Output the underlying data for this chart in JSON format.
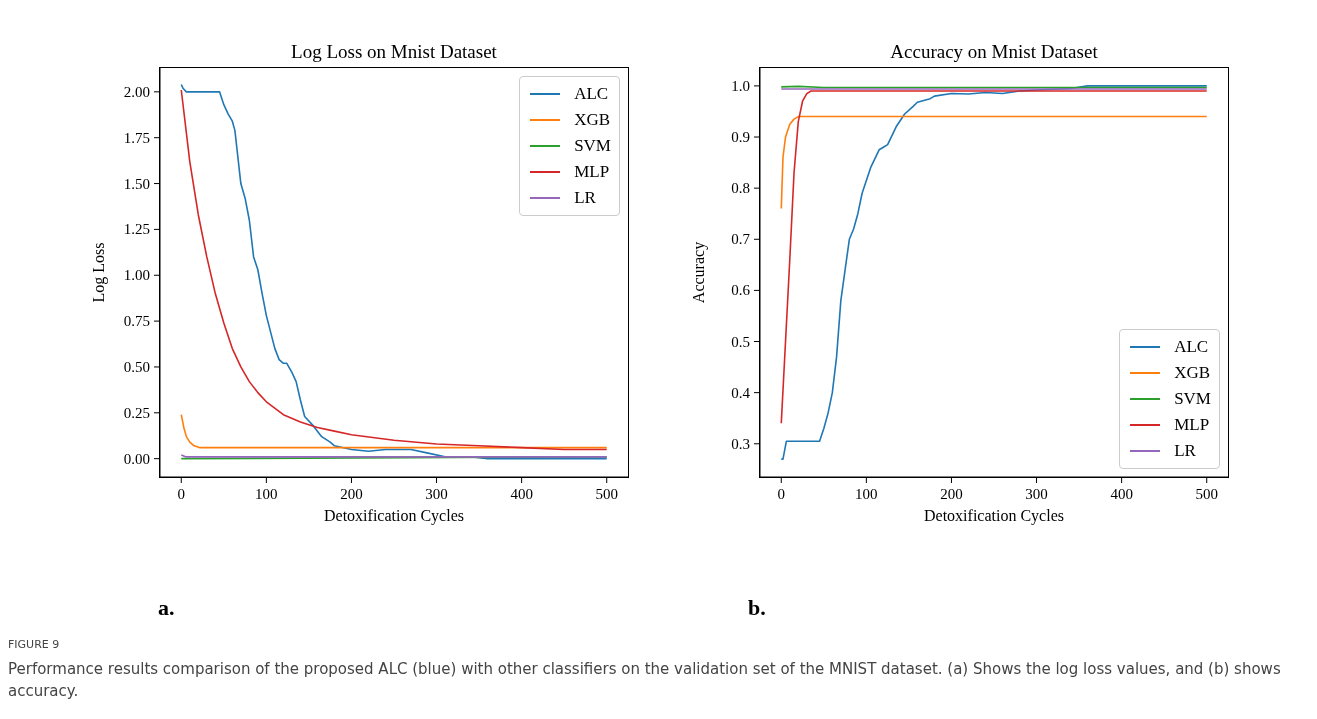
{
  "chart_data": [
    {
      "type": "line",
      "title": "Log Loss on Mnist Dataset",
      "xlabel": "Detoxification Cycles",
      "ylabel": "Log Loss",
      "xlim": [
        -25,
        525
      ],
      "xticks": [
        0,
        100,
        200,
        300,
        400,
        500
      ],
      "ylim": [
        -0.1,
        2.13
      ],
      "yticks": [
        {
          "value": 0,
          "label": "0.00"
        },
        {
          "value": 0.25,
          "label": "0.25"
        },
        {
          "value": 0.5,
          "label": "0.50"
        },
        {
          "value": 0.75,
          "label": "0.75"
        },
        {
          "value": 1,
          "label": "1.00"
        },
        {
          "value": 1.25,
          "label": "1.25"
        },
        {
          "value": 1.5,
          "label": "1.50"
        },
        {
          "value": 1.75,
          "label": "1.75"
        },
        {
          "value": 2,
          "label": "2.00"
        }
      ],
      "legend": "top right",
      "line_style": "solid",
      "annotations": [
        "a."
      ],
      "series": [
        {
          "name": "ALC",
          "color": "#1f77b4",
          "x": [
            0,
            2,
            6,
            45,
            50,
            55,
            60,
            63,
            70,
            75,
            80,
            85,
            90,
            95,
            100,
            110,
            115,
            120,
            124,
            130,
            135,
            140,
            145,
            155,
            165,
            175,
            180,
            200,
            220,
            240,
            270,
            290,
            310,
            340,
            360,
            500
          ],
          "values": [
            2.04,
            2.02,
            2.0,
            2.0,
            1.93,
            1.88,
            1.84,
            1.79,
            1.5,
            1.42,
            1.3,
            1.1,
            1.03,
            0.9,
            0.78,
            0.6,
            0.54,
            0.52,
            0.52,
            0.47,
            0.42,
            0.32,
            0.23,
            0.18,
            0.12,
            0.09,
            0.07,
            0.05,
            0.04,
            0.05,
            0.05,
            0.03,
            0.01,
            0.01,
            0.0,
            0.0
          ]
        },
        {
          "name": "XGB",
          "color": "#ff7f0e",
          "x": [
            0,
            3,
            6,
            10,
            15,
            22,
            500
          ],
          "values": [
            0.24,
            0.17,
            0.12,
            0.09,
            0.07,
            0.06,
            0.06
          ]
        },
        {
          "name": "SVM",
          "color": "#2ca02c",
          "x": [
            0,
            500
          ],
          "values": [
            0.0,
            0.01
          ]
        },
        {
          "name": "MLP",
          "color": "#d62728",
          "x": [
            0,
            10,
            20,
            30,
            40,
            50,
            60,
            70,
            80,
            90,
            100,
            120,
            140,
            160,
            180,
            200,
            250,
            300,
            350,
            400,
            450,
            500
          ],
          "values": [
            2.01,
            1.62,
            1.33,
            1.1,
            0.9,
            0.74,
            0.6,
            0.5,
            0.42,
            0.36,
            0.31,
            0.24,
            0.2,
            0.17,
            0.15,
            0.13,
            0.1,
            0.08,
            0.07,
            0.06,
            0.05,
            0.05
          ]
        },
        {
          "name": "LR",
          "color": "#9467bd",
          "x": [
            0,
            5,
            500
          ],
          "values": [
            0.02,
            0.01,
            0.01
          ]
        }
      ]
    },
    {
      "type": "line",
      "title": "Accuracy on Mnist Dataset",
      "xlabel": "Detoxification Cycles",
      "ylabel": "Accuracy",
      "xlim": [
        -25,
        525
      ],
      "xticks": [
        0,
        100,
        200,
        300,
        400,
        500
      ],
      "ylim": [
        0.235,
        1.035
      ],
      "yticks": [
        0.3,
        0.4,
        0.5,
        0.6,
        0.7,
        0.8,
        0.9,
        {
          "value": 1,
          "label": "1.0"
        }
      ],
      "legend": "bottom right",
      "line_style": "solid",
      "annotations": [
        "b.",
        "FIGURE 9",
        "Performance results comparison of the proposed ALC (blue) with other classifiers on the validation set of the MNIST dataset. (a) Shows the log loss values, and (b) shows accuracy."
      ],
      "series": [
        {
          "name": "ALC",
          "color": "#1f77b4",
          "x": [
            0,
            2,
            6,
            45,
            50,
            55,
            60,
            65,
            70,
            75,
            80,
            85,
            90,
            95,
            105,
            115,
            120,
            125,
            135,
            145,
            155,
            160,
            175,
            180,
            200,
            220,
            240,
            260,
            280,
            300,
            340,
            360,
            500
          ],
          "values": [
            0.27,
            0.27,
            0.305,
            0.305,
            0.33,
            0.36,
            0.4,
            0.47,
            0.58,
            0.64,
            0.7,
            0.72,
            0.75,
            0.79,
            0.84,
            0.875,
            0.88,
            0.885,
            0.92,
            0.945,
            0.96,
            0.968,
            0.975,
            0.98,
            0.985,
            0.984,
            0.987,
            0.985,
            0.99,
            0.992,
            0.995,
            1.0,
            1.0
          ]
        },
        {
          "name": "XGB",
          "color": "#ff7f0e",
          "x": [
            0,
            2,
            5,
            10,
            15,
            20,
            500
          ],
          "values": [
            0.76,
            0.86,
            0.9,
            0.925,
            0.935,
            0.94,
            0.94
          ]
        },
        {
          "name": "SVM",
          "color": "#2ca02c",
          "x": [
            0,
            20,
            50,
            100,
            500
          ],
          "values": [
            0.998,
            0.999,
            0.997,
            0.997,
            0.997
          ]
        },
        {
          "name": "MLP",
          "color": "#d62728",
          "x": [
            0,
            5,
            10,
            15,
            20,
            25,
            30,
            35,
            500
          ],
          "values": [
            0.34,
            0.5,
            0.66,
            0.83,
            0.93,
            0.97,
            0.985,
            0.99,
            0.99
          ]
        },
        {
          "name": "LR",
          "color": "#9467bd",
          "x": [
            0,
            500
          ],
          "values": [
            0.994,
            0.994
          ]
        }
      ]
    }
  ]
}
